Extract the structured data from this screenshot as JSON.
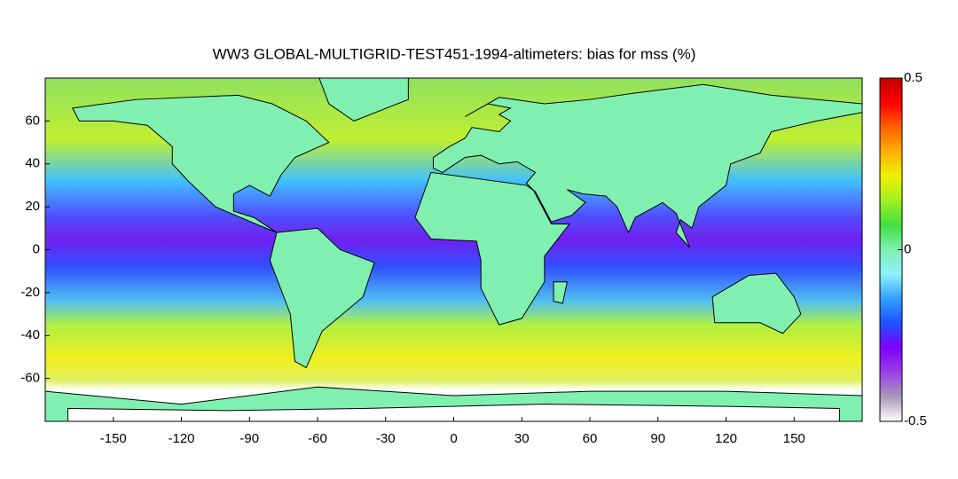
{
  "chart_data": {
    "type": "map",
    "title": "WW3 GLOBAL-MULTIGRID-TEST451-1994-altimeters: bias for mss (%)",
    "xlim": [
      -180,
      180
    ],
    "ylim": [
      -80,
      80
    ],
    "xticks": [
      -150,
      -120,
      -90,
      -60,
      -30,
      0,
      30,
      60,
      90,
      120,
      150
    ],
    "yticks": [
      -60,
      -40,
      -20,
      0,
      20,
      40,
      60
    ],
    "colorbar": {
      "clim": [
        -0.5,
        0.5
      ],
      "ticks": [
        -0.5,
        0,
        0.5
      ],
      "colors": [
        "#ffffff",
        "#a898b8",
        "#9a40e8",
        "#8000ff",
        "#2050ff",
        "#30a0ff",
        "#90f0ff",
        "#80f0b0",
        "#40e040",
        "#a0f020",
        "#f0f000",
        "#ffb000",
        "#ff6000",
        "#ff0000",
        "#c00000"
      ]
    }
  }
}
